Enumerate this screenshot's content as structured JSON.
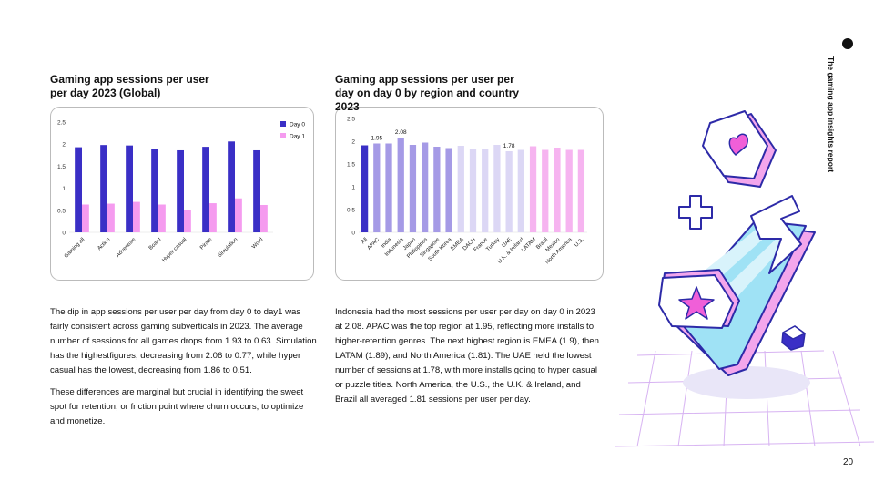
{
  "report_title": "The gaming app insights report",
  "page_number": "20",
  "chart_data": [
    {
      "type": "bar",
      "title": "Gaming app sessions per user per day 2023 (Global)",
      "categories": [
        "Gaming all",
        "Action",
        "Adventure",
        "Board",
        "Hyper casual",
        "Pirate",
        "Simulation",
        "Word"
      ],
      "series": [
        {
          "name": "Day 0",
          "color": "#3a2fc6",
          "values": [
            1.93,
            1.98,
            1.97,
            1.89,
            1.86,
            1.94,
            2.06,
            1.86
          ]
        },
        {
          "name": "Day 1",
          "color": "#f59bef",
          "values": [
            0.63,
            0.65,
            0.69,
            0.63,
            0.51,
            0.66,
            0.77,
            0.62
          ]
        }
      ],
      "ylim": [
        0,
        2.5
      ],
      "yticks": [
        0,
        0.5,
        1,
        1.5,
        2,
        2.5
      ],
      "legend": "top-right"
    },
    {
      "type": "bar",
      "title": "Gaming app sessions per user per day on day 0 by region and country 2023",
      "categories": [
        "All",
        "APAC",
        "India",
        "Indonesia",
        "Japan",
        "Philippines",
        "Singapore",
        "South Korea",
        "EMEA",
        "DACH",
        "France",
        "Turkey",
        "UAE",
        "U.K. & Ireland",
        "LATAM",
        "Brazil",
        "Mexico",
        "North America",
        "U.S."
      ],
      "values": [
        1.91,
        1.95,
        1.95,
        2.08,
        1.92,
        1.97,
        1.88,
        1.85,
        1.9,
        1.83,
        1.83,
        1.92,
        1.78,
        1.81,
        1.89,
        1.81,
        1.86,
        1.81,
        1.81
      ],
      "value_labels": [
        null,
        "1.95",
        null,
        "2.08",
        null,
        null,
        null,
        null,
        null,
        null,
        null,
        null,
        "1.78",
        null,
        null,
        null,
        null,
        null,
        null
      ],
      "colors": [
        "#3a2fc6",
        "#a59ae6",
        "#a59ae6",
        "#a59ae6",
        "#a59ae6",
        "#a59ae6",
        "#a59ae6",
        "#a59ae6",
        "#dcd7f5",
        "#dcd7f5",
        "#dcd7f5",
        "#dcd7f5",
        "#dcd7f5",
        "#dcd7f5",
        "#f6b4f0",
        "#f6b4f0",
        "#f6b4f0",
        "#f6b4f0",
        "#f6b4f0"
      ],
      "ylim": [
        0,
        2.5
      ],
      "yticks": [
        0,
        0.5,
        1,
        1.5,
        2,
        2.5
      ]
    }
  ],
  "paragraphs_left": [
    "The dip in app sessions per user per day from day 0 to day1 was fairly consistent across gaming subverticals in 2023. The average number of sessions for all games drops from 1.93 to 0.63. Simulation has the highestfigures, decreasing from 2.06 to 0.77, while hyper casual has the lowest, decreasing from 1.86 to 0.51.",
    "These differences are marginal but crucial in identifying the sweet spot for retention, or friction point where churn occurs, to optimize and monetize."
  ],
  "paragraphs_right": [
    "Indonesia had the most sessions per user per day on day 0 in 2023 at 2.08. APAC was the top region at 1.95, reflecting more installs to higher-retention genres. The next highest region is EMEA (1.9), then LATAM (1.89), and North America (1.81). The UAE held the lowest number of sessions at 1.78, with more installs going to hyper casual or puzzle titles. North America, the U.S., the U.K. & Ireland, and Brazil all averaged 1.81 sessions per user per day."
  ]
}
